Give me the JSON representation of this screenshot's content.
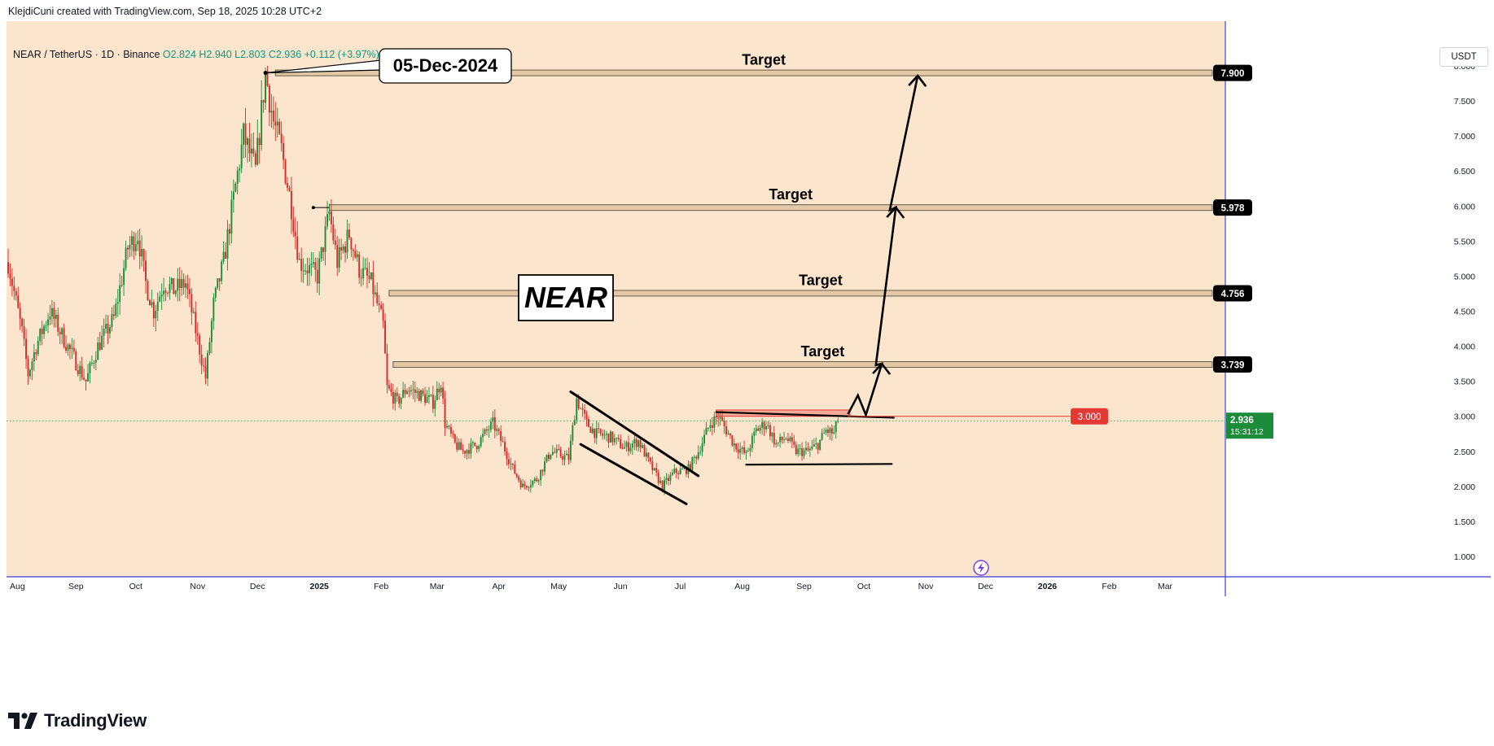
{
  "header": {
    "caption": "KlejdiCuni created with TradingView.com, Sep 18, 2025 10:28 UTC+2",
    "symbol": "NEAR / TetherUS · 1D · Binance",
    "ohlc": "O2.824  H2.940  L2.803  C2.936  +0.112 (+3.97%)",
    "unit": "USDT"
  },
  "footer": {
    "brand": "TradingView"
  },
  "colors": {
    "background": "#fbe5cd",
    "up": "#1b8c3a",
    "down": "#d42b2b",
    "axis_line": "#3c3cd8",
    "price_badge": "#1b8c3a",
    "alert_badge": "#e53935"
  },
  "chart_data": {
    "type": "candlestick",
    "symbol": "NEAR / TetherUS",
    "interval": "1D",
    "exchange": "Binance",
    "y_axis": {
      "ticks": [
        1,
        1.5,
        2,
        2.5,
        3,
        3.5,
        4,
        4.5,
        5,
        5.5,
        6,
        6.5,
        7,
        7.5,
        8
      ],
      "tick_labels": [
        "1.000",
        "1.500",
        "2.000",
        "2.500",
        "3.000",
        "3.500",
        "4.000",
        "4.500",
        "5.000",
        "5.500",
        "6.000",
        "6.500",
        "7.000",
        "7.500",
        "8.000"
      ],
      "range": [
        0.7,
        8.4
      ]
    },
    "x_axis": {
      "labels": [
        "Aug",
        "Sep",
        "Oct",
        "Nov",
        "Dec",
        "2025",
        "Feb",
        "Mar",
        "Apr",
        "May",
        "Jun",
        "Jul",
        "Aug",
        "Sep",
        "Oct",
        "Nov",
        "Dec",
        "2026",
        "Feb",
        "Mar"
      ],
      "bold": [
        "2025",
        "2026"
      ]
    },
    "price_path": [
      [
        "2024-07-29",
        5.2
      ],
      [
        "2024-08-05",
        4.2
      ],
      [
        "2024-08-08",
        3.6
      ],
      [
        "2024-08-12",
        4.0
      ],
      [
        "2024-08-19",
        4.5
      ],
      [
        "2024-08-26",
        4.1
      ],
      [
        "2024-09-06",
        3.5
      ],
      [
        "2024-09-12",
        4.0
      ],
      [
        "2024-09-20",
        4.4
      ],
      [
        "2024-09-27",
        5.4
      ],
      [
        "2024-10-02",
        5.6
      ],
      [
        "2024-10-06",
        4.9
      ],
      [
        "2024-10-10",
        4.5
      ],
      [
        "2024-10-15",
        4.9
      ],
      [
        "2024-10-20",
        4.8
      ],
      [
        "2024-10-26",
        4.9
      ],
      [
        "2024-11-05",
        3.55
      ],
      [
        "2024-11-09",
        4.6
      ],
      [
        "2024-11-14",
        5.2
      ],
      [
        "2024-11-19",
        6.1
      ],
      [
        "2024-11-24",
        7.0
      ],
      [
        "2024-11-30",
        6.5
      ],
      [
        "2024-12-05",
        7.9
      ],
      [
        "2024-12-09",
        7.2
      ],
      [
        "2024-12-13",
        6.8
      ],
      [
        "2024-12-18",
        6.0
      ],
      [
        "2024-12-22",
        5.2
      ],
      [
        "2024-12-27",
        5.1
      ],
      [
        "2024-12-31",
        5.0
      ],
      [
        "2025-01-06",
        5.9
      ],
      [
        "2025-01-10",
        5.2
      ],
      [
        "2025-01-16",
        5.6
      ],
      [
        "2025-01-21",
        5.1
      ],
      [
        "2025-01-27",
        4.9
      ],
      [
        "2025-02-02",
        4.3
      ],
      [
        "2025-02-04",
        3.4
      ],
      [
        "2025-02-09",
        3.2
      ],
      [
        "2025-02-14",
        3.4
      ],
      [
        "2025-02-21",
        3.3
      ],
      [
        "2025-02-27",
        3.2
      ],
      [
        "2025-03-03",
        3.5
      ],
      [
        "2025-03-05",
        2.9
      ],
      [
        "2025-03-10",
        2.6
      ],
      [
        "2025-03-14",
        2.5
      ],
      [
        "2025-03-21",
        2.6
      ],
      [
        "2025-03-29",
        2.9
      ],
      [
        "2025-04-03",
        2.6
      ],
      [
        "2025-04-08",
        2.25
      ],
      [
        "2025-04-13",
        2.0
      ],
      [
        "2025-04-20",
        2.1
      ],
      [
        "2025-04-27",
        2.5
      ],
      [
        "2025-05-06",
        2.4
      ],
      [
        "2025-05-10",
        3.25
      ],
      [
        "2025-05-15",
        2.9
      ],
      [
        "2025-05-20",
        2.75
      ],
      [
        "2025-05-27",
        2.7
      ],
      [
        "2025-06-03",
        2.55
      ],
      [
        "2025-06-10",
        2.65
      ],
      [
        "2025-06-16",
        2.3
      ],
      [
        "2025-06-22",
        2.0
      ],
      [
        "2025-06-28",
        2.2
      ],
      [
        "2025-07-05",
        2.25
      ],
      [
        "2025-07-10",
        2.5
      ],
      [
        "2025-07-16",
        2.9
      ],
      [
        "2025-07-20",
        3.0
      ],
      [
        "2025-07-24",
        2.8
      ],
      [
        "2025-07-28",
        2.6
      ],
      [
        "2025-08-03",
        2.45
      ],
      [
        "2025-08-08",
        2.8
      ],
      [
        "2025-08-13",
        2.9
      ],
      [
        "2025-08-18",
        2.6
      ],
      [
        "2025-08-23",
        2.7
      ],
      [
        "2025-08-28",
        2.5
      ],
      [
        "2025-09-03",
        2.5
      ],
      [
        "2025-09-08",
        2.6
      ],
      [
        "2025-09-12",
        2.8
      ],
      [
        "2025-09-16",
        2.75
      ],
      [
        "2025-09-18",
        2.936
      ]
    ],
    "annotations": {
      "date_callout": "05-Dec-2024",
      "center_label": "NEAR",
      "target_label": "Target",
      "targets": [
        {
          "label": "Target",
          "price": 7.9,
          "price_label": "7.900",
          "from": "2024-12-10"
        },
        {
          "label": "Target",
          "price": 5.978,
          "price_label": "5.978",
          "from": "2025-01-06"
        },
        {
          "label": "Target",
          "price": 4.756,
          "price_label": "4.756",
          "from": "2025-02-05"
        },
        {
          "label": "Target",
          "price": 3.739,
          "price_label": "3.739",
          "from": "2025-02-07"
        }
      ],
      "alert_level": {
        "price": 3.0,
        "label": "3.000"
      },
      "last_price": {
        "value": 2.936,
        "label": "2.936",
        "countdown": "15:31:12"
      },
      "channel": {
        "upper": [
          [
            "2025-05-07",
            3.35
          ],
          [
            "2025-07-10",
            2.15
          ]
        ],
        "lower": [
          [
            "2025-05-12",
            2.6
          ],
          [
            "2025-07-04",
            1.75
          ]
        ]
      },
      "resistance": [
        [
          "2025-07-19",
          3.06
        ],
        [
          "2025-10-16",
          2.98
        ]
      ],
      "support": [
        [
          "2025-08-03",
          2.31
        ],
        [
          "2025-10-15",
          2.32
        ]
      ],
      "projection_path": [
        [
          "2025-09-23",
          3.03
        ],
        [
          "2025-09-28",
          3.3
        ],
        [
          "2025-10-02",
          3.02
        ],
        [
          "2025-10-10",
          3.75
        ],
        [
          "2025-10-07",
          3.73
        ],
        [
          "2025-10-17",
          5.98
        ],
        [
          "2025-10-14",
          5.94
        ],
        [
          "2025-10-28",
          7.86
        ]
      ]
    }
  }
}
